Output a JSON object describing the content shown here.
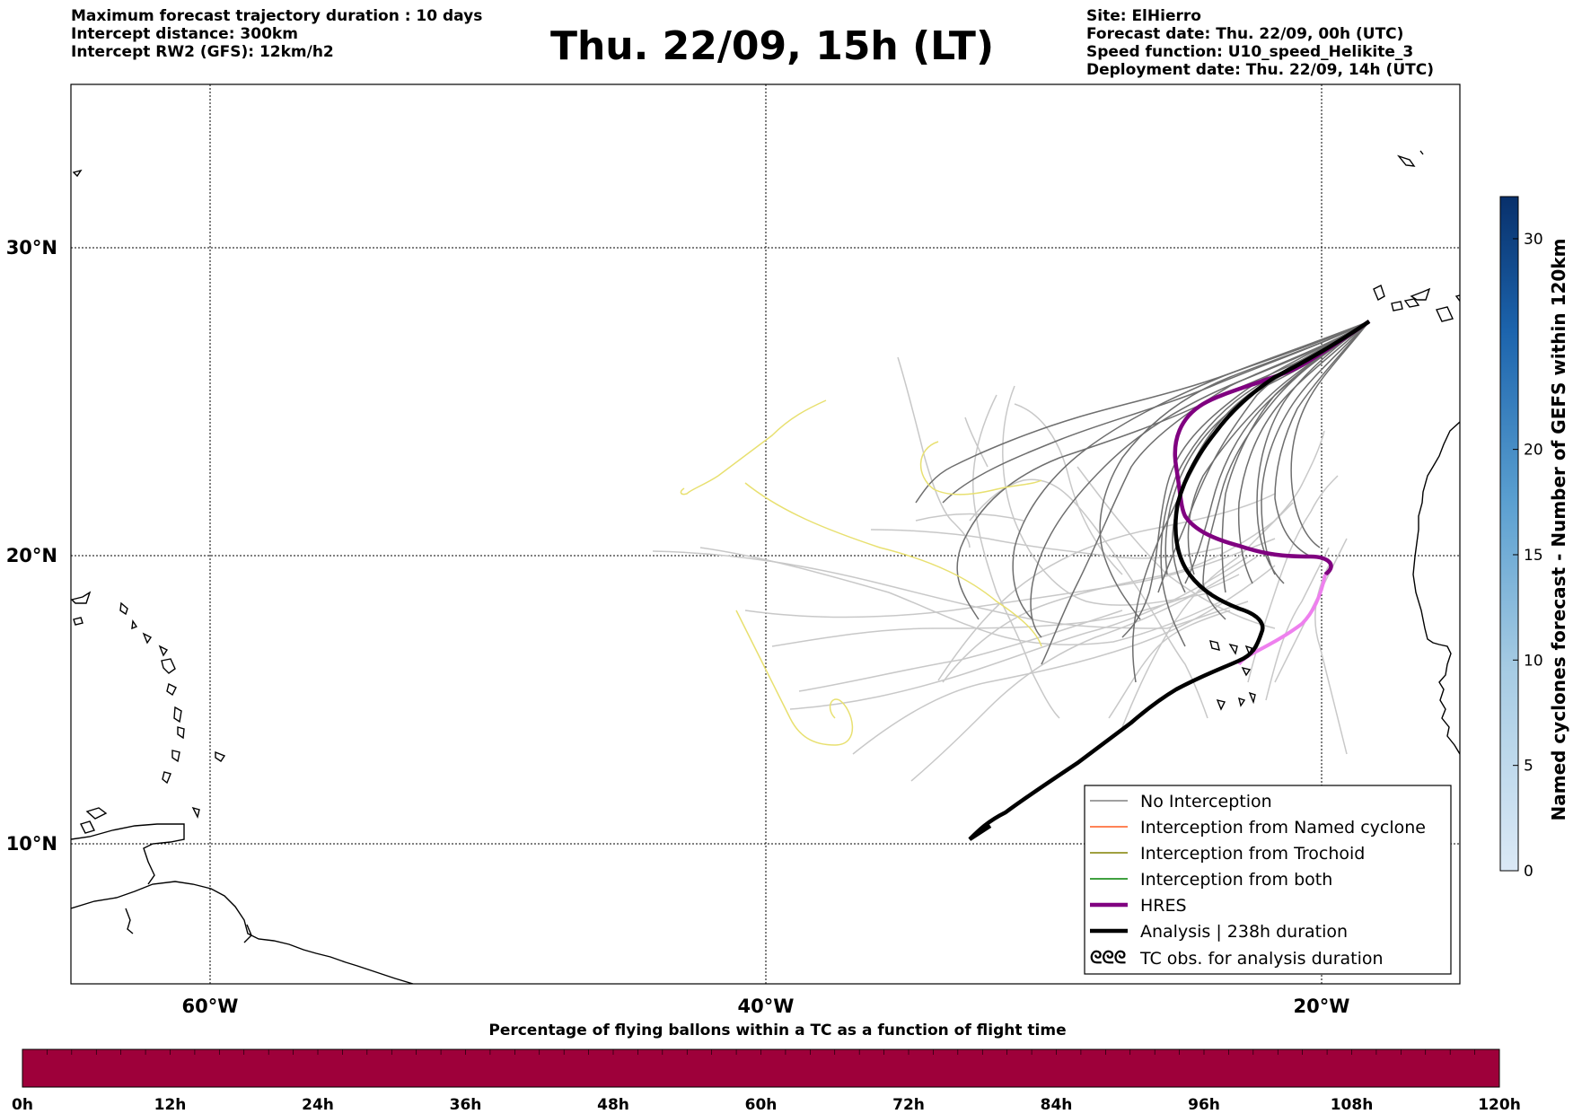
{
  "header": {
    "left_lines": [
      "Maximum forecast trajectory duration : 10 days",
      "Intercept distance: 300km",
      "Intercept RW2 (GFS):  12km/h2"
    ],
    "title": "Thu. 22/09, 15h (LT)",
    "right_lines": [
      "Site: ElHierro",
      "Forecast date: Thu. 22/09, 00h (UTC)",
      "Speed function: U10_speed_Helikite_3",
      "Deployment date: Thu. 22/09, 14h (UTC)"
    ]
  },
  "map": {
    "lat_labels": [
      "30°N",
      "20°N",
      "10°N"
    ],
    "lon_labels": [
      "60°W",
      "40°W",
      "20°W"
    ],
    "lat_range": [
      5,
      35.5
    ],
    "lon_range": [
      -65,
      -15
    ]
  },
  "legend": {
    "items": [
      {
        "label": "No Interception",
        "color": "#808080",
        "style": "thin"
      },
      {
        "label": "Interception from Named cyclone",
        "color": "#ff5a1f",
        "style": "thin"
      },
      {
        "label": "Interception from Trochoid",
        "color": "#808000",
        "style": "thin"
      },
      {
        "label": "Interception from both",
        "color": "#008000",
        "style": "thin"
      },
      {
        "label": "HRES",
        "color": "#800080",
        "style": "thick"
      },
      {
        "label": "Analysis | 238h duration",
        "color": "#000000",
        "style": "thick"
      },
      {
        "label": "TC obs. for analysis duration",
        "color": "#000000",
        "style": "symbol"
      }
    ]
  },
  "colorbar_right": {
    "label": "Named cyclones forecast - Number of GEFS within 120km",
    "ticks": [
      "30",
      "20",
      "15",
      "10",
      "5",
      "0"
    ],
    "tick_values": [
      30,
      20,
      15,
      10,
      5,
      0
    ],
    "min": 0,
    "max": 32,
    "color_low": "#dbe9f6",
    "color_high": "#08306b"
  },
  "time_bar": {
    "title": "Percentage of flying ballons within a TC as a function of flight time",
    "ticks": [
      "0h",
      "12h",
      "24h",
      "36h",
      "48h",
      "60h",
      "72h",
      "84h",
      "96h",
      "108h",
      "120h"
    ],
    "color": "#9e003a"
  }
}
